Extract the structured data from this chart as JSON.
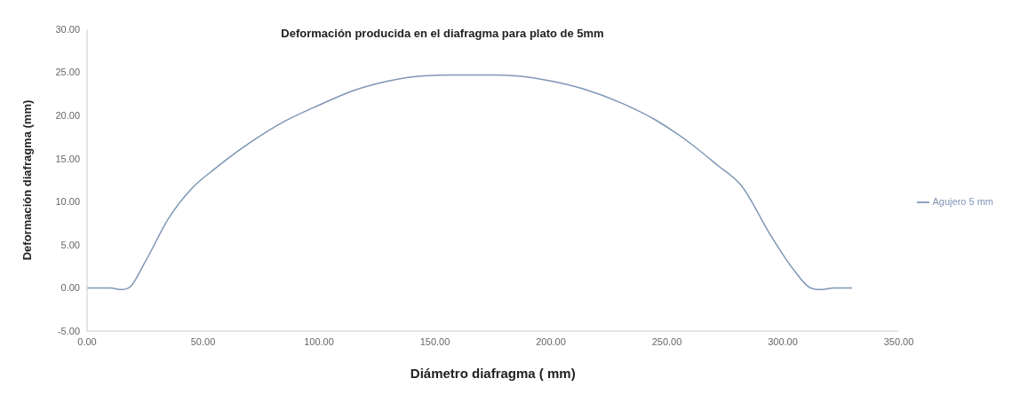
{
  "chart_data": {
    "type": "line",
    "title": "Deformación producida en el diafragma para plato de 5mm",
    "xlabel": "Diámetro diafragma ( mm)",
    "ylabel": "Deformación diafragma  (mm)",
    "x": [
      0,
      10,
      15,
      18,
      25,
      35,
      45,
      55,
      70,
      85,
      100,
      115,
      130,
      145,
      160,
      175,
      185,
      200,
      215,
      230,
      245,
      260,
      272,
      282,
      295,
      305,
      312,
      316,
      322,
      330
    ],
    "series": [
      {
        "name": "Agujero 5 mm",
        "color": "#7f96b5",
        "values": [
          0,
          0,
          -0.2,
          0,
          3,
          8,
          11.5,
          13.8,
          16.8,
          19.3,
          21.2,
          22.9,
          24,
          24.6,
          24.7,
          24.7,
          24.6,
          24,
          23,
          21.5,
          19.5,
          16.8,
          14.2,
          11.9,
          6,
          2,
          0,
          -0.2,
          0,
          0
        ]
      }
    ],
    "xlim": [
      0,
      350
    ],
    "xticks": [
      {
        "value": 0,
        "label": "0.00"
      },
      {
        "value": 50,
        "label": "50.00"
      },
      {
        "value": 100,
        "label": "100.00"
      },
      {
        "value": 150,
        "label": "150.00"
      },
      {
        "value": 200,
        "label": "200.00"
      },
      {
        "value": 250,
        "label": "250.00"
      },
      {
        "value": 300,
        "label": "300.00"
      },
      {
        "value": 350,
        "label": "350.00"
      }
    ],
    "ylim": [
      -5,
      30
    ],
    "yticks": [
      {
        "value": -5,
        "label": "-5.00"
      },
      {
        "value": 0,
        "label": "0.00"
      },
      {
        "value": 5,
        "label": "5.00"
      },
      {
        "value": 10,
        "label": "10.00"
      },
      {
        "value": 15,
        "label": "15.00"
      },
      {
        "value": 20,
        "label": "20.00"
      },
      {
        "value": 25,
        "label": "25.00"
      },
      {
        "value": 30,
        "label": "30.00"
      }
    ],
    "grid": false,
    "legend": "right",
    "marker": "none",
    "line_style": "solid"
  }
}
